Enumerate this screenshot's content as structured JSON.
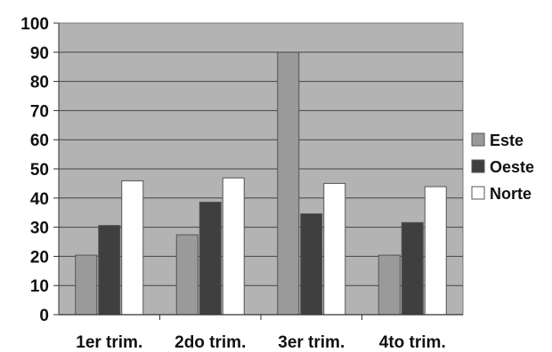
{
  "chart_data": {
    "type": "bar",
    "title": "",
    "xlabel": "",
    "ylabel": "",
    "categories": [
      "1er trim.",
      "2do trim.",
      "3er trim.",
      "4to trim."
    ],
    "series": [
      {
        "name": "Este",
        "values": [
          20.4,
          27.4,
          90,
          20.4
        ],
        "color": "#9a9a9a"
      },
      {
        "name": "Oeste",
        "values": [
          30.6,
          38.6,
          34.6,
          31.6
        ],
        "color": "#3f3f3f"
      },
      {
        "name": "Norte",
        "values": [
          45.9,
          46.9,
          45,
          43.9
        ],
        "color": "#ffffff"
      }
    ],
    "ylim": [
      0,
      100
    ],
    "yticks": [
      "0",
      "10",
      "20",
      "30",
      "40",
      "50",
      "60",
      "70",
      "80",
      "90",
      "100"
    ],
    "grid": true,
    "legend": "right",
    "plot_background": "#b3b3b3"
  }
}
